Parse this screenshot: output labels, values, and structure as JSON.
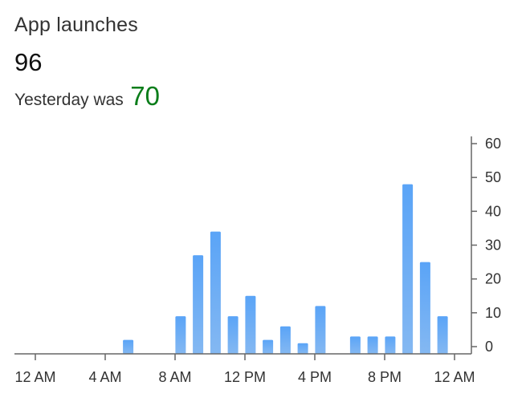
{
  "card": {
    "title": "App launches",
    "value": "96",
    "comparison_label": "Yesterday was",
    "comparison_value": "70"
  },
  "colors": {
    "bar": "#5aa4f7",
    "bar_bottom": "#84b8f2",
    "comparison_value": "#0a7d1a",
    "axis": "#666666"
  },
  "chart_data": {
    "type": "bar",
    "title": "",
    "xlabel": "",
    "ylabel": "",
    "ylim": [
      0,
      60
    ],
    "y_ticks": [
      0,
      10,
      20,
      30,
      40,
      50,
      60
    ],
    "y_axis_position": "right",
    "grid": false,
    "x_tick_labels": [
      "12 AM",
      "4 AM",
      "8 AM",
      "12 PM",
      "4 PM",
      "8 PM",
      "12 AM"
    ],
    "x_tick_hours": [
      0,
      4,
      8,
      12,
      16,
      20,
      24
    ],
    "hours": [
      0,
      1,
      2,
      3,
      4,
      5,
      6,
      7,
      8,
      9,
      10,
      11,
      12,
      13,
      14,
      15,
      16,
      17,
      18,
      19,
      20,
      21,
      22,
      23
    ],
    "values": [
      0,
      0,
      0,
      0,
      0,
      2,
      0,
      0,
      9,
      27,
      34,
      9,
      15,
      2,
      6,
      1,
      12,
      0,
      3,
      3,
      3,
      48,
      25,
      9
    ]
  }
}
